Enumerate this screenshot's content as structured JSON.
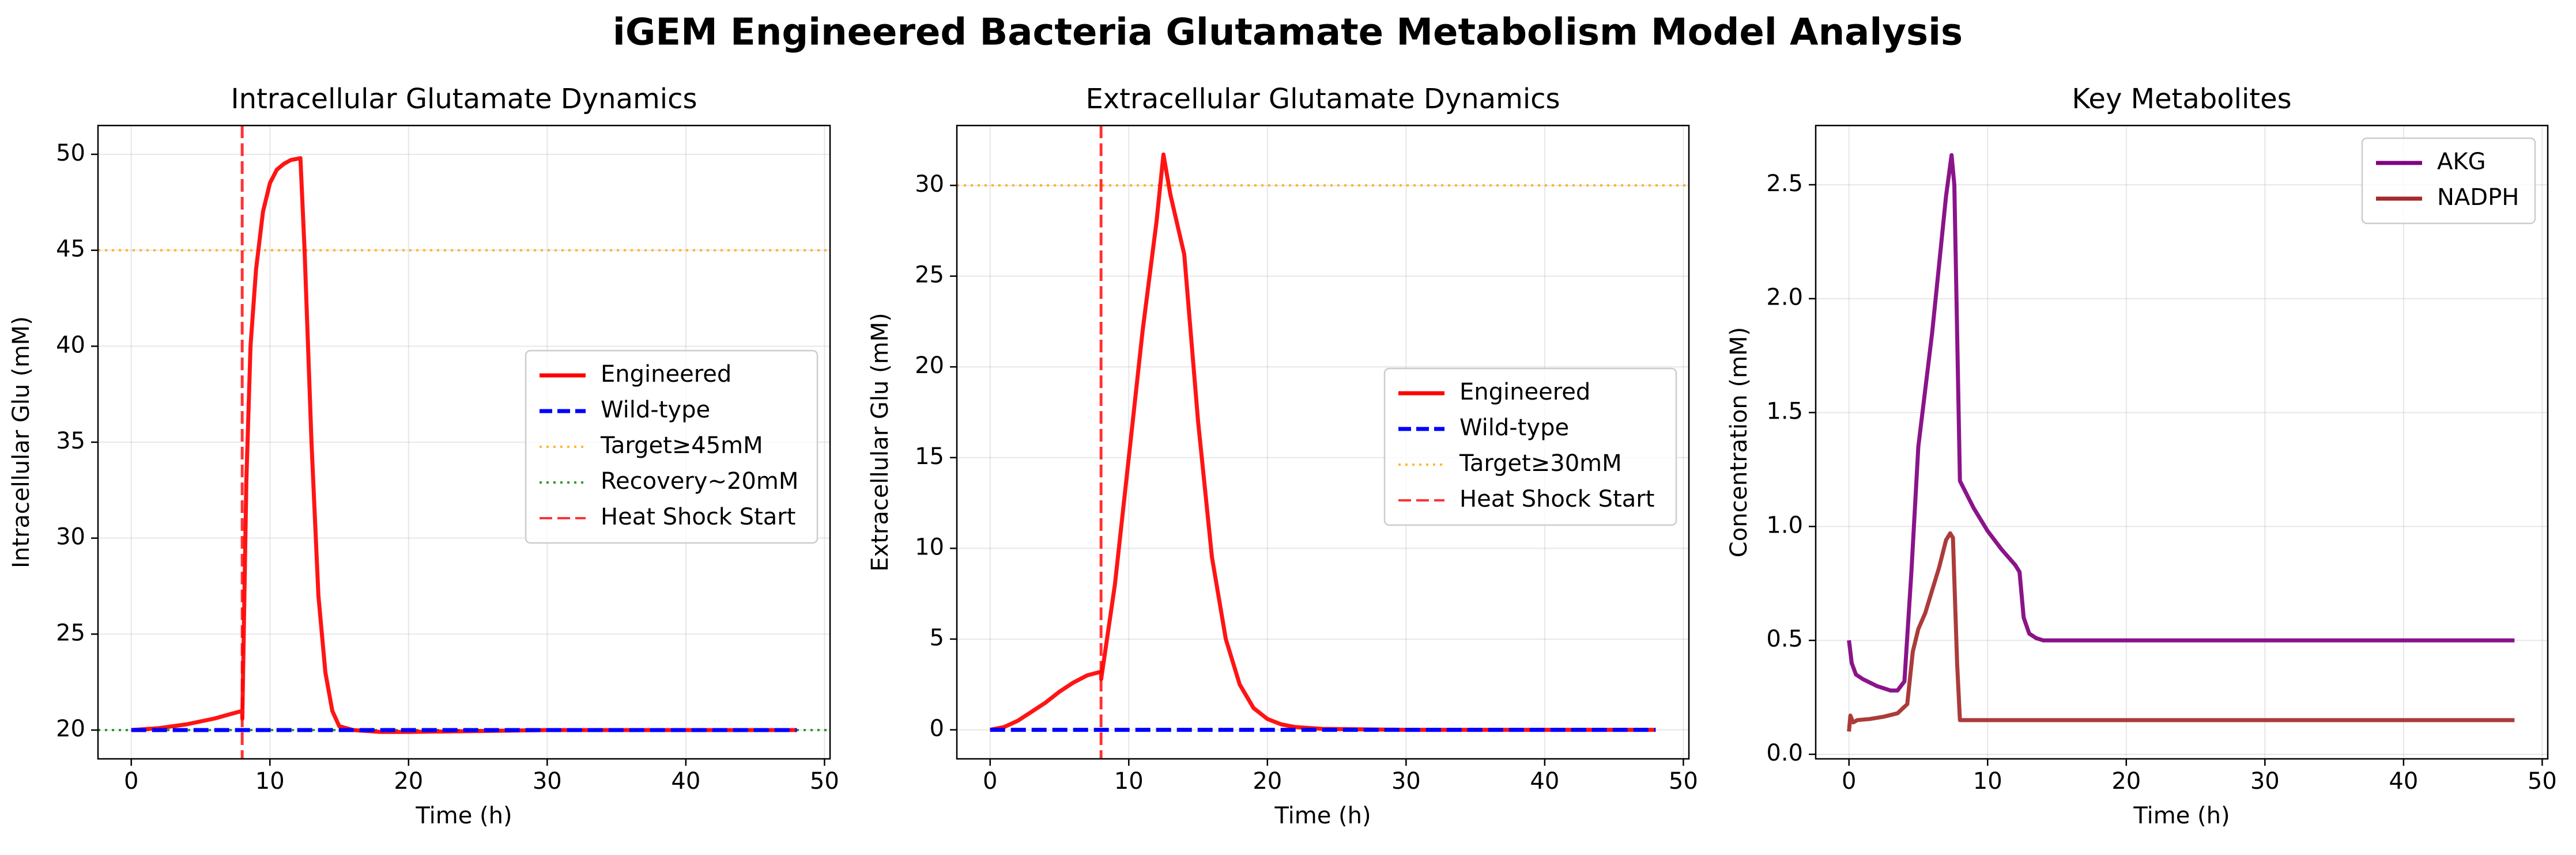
{
  "figure_title": "iGEM Engineered Bacteria Glutamate Metabolism Model Analysis",
  "chart_data": [
    {
      "type": "line",
      "title": "Intracellular Glutamate Dynamics",
      "xlabel": "Time (h)",
      "ylabel": "Intracellular Glu (mM)",
      "xlim": [
        -2.4,
        50.4
      ],
      "ylim": [
        18.5,
        51.5
      ],
      "xticks": [
        0,
        10,
        20,
        30,
        40,
        50
      ],
      "yticks": [
        20,
        25,
        30,
        35,
        40,
        45,
        50
      ],
      "grid": true,
      "legend_position": "center-right",
      "series": [
        {
          "name": "Engineered",
          "color": "#ff0000",
          "style": "solid",
          "points": [
            [
              0,
              20.0
            ],
            [
              2,
              20.1
            ],
            [
              4,
              20.3
            ],
            [
              6,
              20.6
            ],
            [
              7,
              20.8
            ],
            [
              8,
              21.0
            ],
            [
              8.01,
              20.6
            ],
            [
              8.3,
              33
            ],
            [
              8.6,
              40
            ],
            [
              9,
              44
            ],
            [
              9.5,
              47
            ],
            [
              10,
              48.5
            ],
            [
              10.5,
              49.2
            ],
            [
              11,
              49.5
            ],
            [
              11.5,
              49.7
            ],
            [
              12.2,
              49.8
            ],
            [
              12.5,
              45
            ],
            [
              13,
              35
            ],
            [
              13.5,
              27
            ],
            [
              14,
              23
            ],
            [
              14.5,
              21
            ],
            [
              15,
              20.2
            ],
            [
              16,
              20.0
            ],
            [
              18,
              19.9
            ],
            [
              20,
              19.9
            ],
            [
              30,
              20.0
            ],
            [
              40,
              20.0
            ],
            [
              48,
              20.0
            ]
          ]
        },
        {
          "name": "Wild-type",
          "color": "#0000ff",
          "style": "dashed",
          "points": [
            [
              0,
              20.0
            ],
            [
              48,
              20.0
            ]
          ]
        }
      ],
      "hlines": [
        {
          "name": "Target≥45mM",
          "y": 45,
          "color": "#ffa500",
          "style": "dotted"
        },
        {
          "name": "Recovery~20mM",
          "y": 20,
          "color": "#008000",
          "style": "dotted"
        }
      ],
      "vlines": [
        {
          "name": "Heat Shock Start",
          "x": 8,
          "color": "#ff0000",
          "style": "dashed"
        }
      ],
      "legend_order": [
        "Engineered",
        "Wild-type",
        "Target≥45mM",
        "Recovery~20mM",
        "Heat Shock Start"
      ]
    },
    {
      "type": "line",
      "title": "Extracellular Glutamate Dynamics",
      "xlabel": "Time (h)",
      "ylabel": "Extracellular Glu (mM)",
      "xlim": [
        -2.4,
        50.4
      ],
      "ylim": [
        -1.6,
        33.3
      ],
      "xticks": [
        0,
        10,
        20,
        30,
        40,
        50
      ],
      "yticks": [
        0,
        5,
        10,
        15,
        20,
        25,
        30
      ],
      "grid": true,
      "legend_position": "center-right",
      "series": [
        {
          "name": "Engineered",
          "color": "#ff0000",
          "style": "solid",
          "points": [
            [
              0,
              0.0
            ],
            [
              1,
              0.15
            ],
            [
              2,
              0.5
            ],
            [
              3,
              1.0
            ],
            [
              4,
              1.5
            ],
            [
              5,
              2.1
            ],
            [
              6,
              2.6
            ],
            [
              7,
              3.0
            ],
            [
              8,
              3.2
            ],
            [
              8.01,
              2.8
            ],
            [
              9,
              8
            ],
            [
              10,
              15
            ],
            [
              11,
              22
            ],
            [
              12,
              28
            ],
            [
              12.5,
              31.7
            ],
            [
              13,
              29.5
            ],
            [
              14,
              26.2
            ],
            [
              15,
              17
            ],
            [
              16,
              9.5
            ],
            [
              17,
              5
            ],
            [
              18,
              2.5
            ],
            [
              19,
              1.2
            ],
            [
              20,
              0.6
            ],
            [
              21,
              0.3
            ],
            [
              22,
              0.15
            ],
            [
              24,
              0.05
            ],
            [
              30,
              0.0
            ],
            [
              48,
              0.0
            ]
          ]
        },
        {
          "name": "Wild-type",
          "color": "#0000ff",
          "style": "dashed",
          "points": [
            [
              0,
              0.0
            ],
            [
              48,
              0.0
            ]
          ]
        }
      ],
      "hlines": [
        {
          "name": "Target≥30mM",
          "y": 30,
          "color": "#ffa500",
          "style": "dotted"
        }
      ],
      "vlines": [
        {
          "name": "Heat Shock Start",
          "x": 8,
          "color": "#ff0000",
          "style": "dashed"
        }
      ],
      "legend_order": [
        "Engineered",
        "Wild-type",
        "Target≥30mM",
        "Heat Shock Start"
      ]
    },
    {
      "type": "line",
      "title": "Key Metabolites",
      "xlabel": "Time (h)",
      "ylabel": "Concentration (mM)",
      "xlim": [
        -2.4,
        50.4
      ],
      "ylim": [
        -0.02,
        2.76
      ],
      "xticks": [
        0,
        10,
        20,
        30,
        40,
        50
      ],
      "yticks": [
        0.0,
        0.5,
        1.0,
        1.5,
        2.0,
        2.5
      ],
      "grid": true,
      "legend_position": "top-right",
      "series": [
        {
          "name": "AKG",
          "color": "#800080",
          "style": "solid",
          "points": [
            [
              0,
              0.5
            ],
            [
              0.2,
              0.4
            ],
            [
              0.5,
              0.35
            ],
            [
              1,
              0.33
            ],
            [
              2,
              0.3
            ],
            [
              3,
              0.28
            ],
            [
              3.5,
              0.28
            ],
            [
              4,
              0.32
            ],
            [
              4.5,
              0.8
            ],
            [
              5,
              1.35
            ],
            [
              5.5,
              1.6
            ],
            [
              6,
              1.85
            ],
            [
              6.5,
              2.15
            ],
            [
              7,
              2.45
            ],
            [
              7.4,
              2.63
            ],
            [
              7.6,
              2.5
            ],
            [
              8,
              1.2
            ],
            [
              9,
              1.08
            ],
            [
              10,
              0.98
            ],
            [
              11,
              0.9
            ],
            [
              12,
              0.83
            ],
            [
              12.3,
              0.8
            ],
            [
              12.6,
              0.6
            ],
            [
              13,
              0.53
            ],
            [
              13.5,
              0.51
            ],
            [
              14,
              0.5
            ],
            [
              20,
              0.5
            ],
            [
              30,
              0.5
            ],
            [
              48,
              0.5
            ]
          ]
        },
        {
          "name": "NADPH",
          "color": "#a52a2a",
          "style": "solid",
          "points": [
            [
              0,
              0.1
            ],
            [
              0.1,
              0.17
            ],
            [
              0.3,
              0.14
            ],
            [
              0.6,
              0.15
            ],
            [
              1.5,
              0.155
            ],
            [
              2.5,
              0.165
            ],
            [
              3.5,
              0.18
            ],
            [
              4.2,
              0.22
            ],
            [
              4.6,
              0.45
            ],
            [
              5,
              0.55
            ],
            [
              5.5,
              0.62
            ],
            [
              6,
              0.72
            ],
            [
              6.5,
              0.82
            ],
            [
              7,
              0.94
            ],
            [
              7.3,
              0.97
            ],
            [
              7.5,
              0.95
            ],
            [
              7.8,
              0.4
            ],
            [
              8,
              0.15
            ],
            [
              10,
              0.15
            ],
            [
              20,
              0.15
            ],
            [
              30,
              0.15
            ],
            [
              48,
              0.15
            ]
          ]
        }
      ],
      "hlines": [],
      "vlines": [],
      "legend_order": [
        "AKG",
        "NADPH"
      ]
    }
  ]
}
